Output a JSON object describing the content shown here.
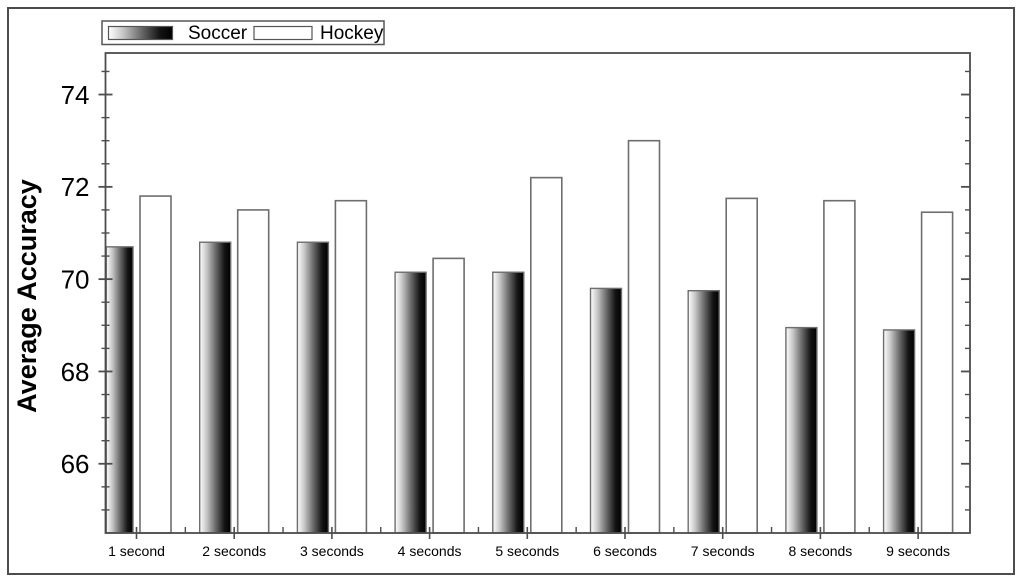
{
  "figure": {
    "background": "#ffffff",
    "border_color": "#4d4d4d",
    "axis_color": "#4d4d4d",
    "text_color": "#000000"
  },
  "legend": {
    "position": "top-left",
    "items": [
      {
        "label": "Soccer",
        "swatch": "gradient-white-to-black"
      },
      {
        "label": "Hockey",
        "swatch": "white-outline"
      }
    ]
  },
  "chart_data": {
    "type": "bar",
    "title": "",
    "xlabel": "",
    "ylabel": "Average Accuracy",
    "categories": [
      "1 second",
      "2 seconds",
      "3 seconds",
      "4 seconds",
      "5 seconds",
      "6 seconds",
      "7 seconds",
      "8 seconds",
      "9 seconds"
    ],
    "series": [
      {
        "name": "Soccer",
        "values": [
          70.7,
          70.8,
          70.8,
          70.15,
          70.15,
          69.8,
          69.75,
          68.95,
          68.9
        ]
      },
      {
        "name": "Hockey",
        "values": [
          71.8,
          71.5,
          71.7,
          70.45,
          72.2,
          73.0,
          71.75,
          71.7,
          71.45
        ]
      }
    ],
    "ylim": [
      64.5,
      74.9
    ],
    "yticks_major": [
      66,
      68,
      70,
      72,
      74
    ],
    "ytick_minor_step": 0.5,
    "grid": false,
    "legend_position": "top-left",
    "bar_colors": {
      "soccer_gradient": [
        "#ffffff",
        "#c8c8c8",
        "#6e6e6e",
        "#141414",
        "#000000"
      ],
      "soccer_gradient_offsets": [
        0,
        0.22,
        0.5,
        0.8,
        1
      ],
      "hockey_fill": "#ffffff",
      "bar_outline": "#6e6e6e"
    }
  }
}
